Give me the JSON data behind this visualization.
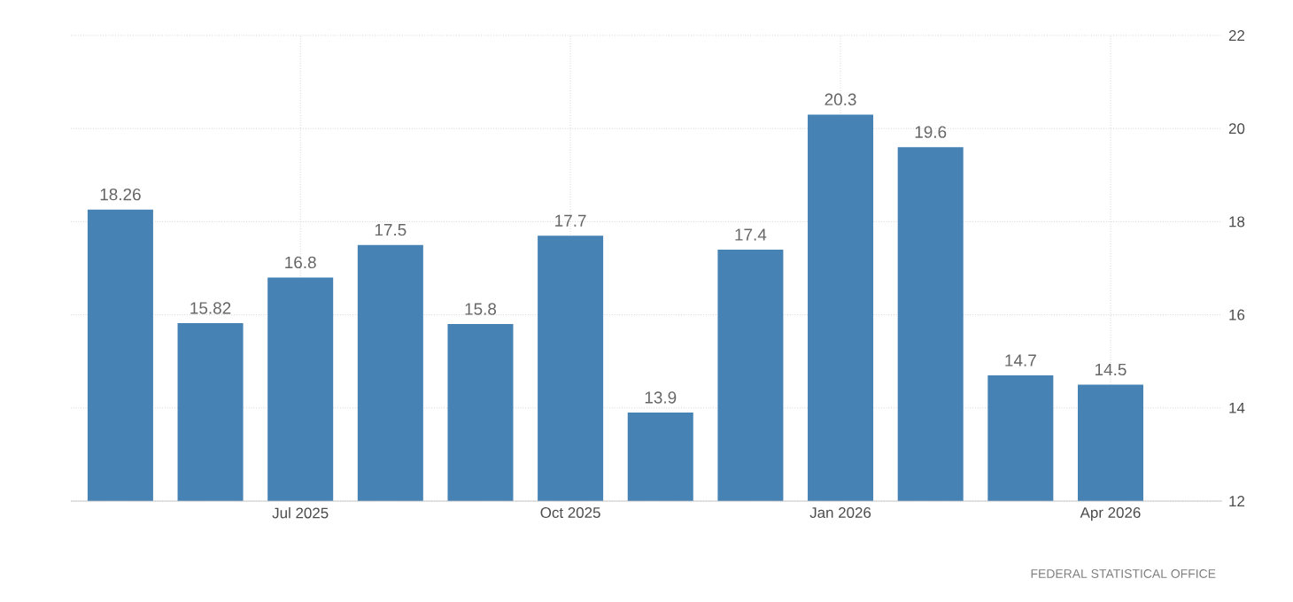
{
  "chart_data": {
    "type": "bar",
    "categories": [
      null,
      null,
      "Jul 2025",
      null,
      null,
      "Oct 2025",
      null,
      null,
      "Jan 2026",
      null,
      null,
      "Apr 2026"
    ],
    "values": [
      18.26,
      15.82,
      16.8,
      17.5,
      15.8,
      17.7,
      13.9,
      17.4,
      20.3,
      19.6,
      14.7,
      14.5
    ],
    "color": "#4682b4",
    "ylim": [
      12,
      22
    ],
    "yticks": [
      12,
      14,
      16,
      18,
      20,
      22
    ],
    "grid": true,
    "data_labels": true,
    "annotations": [
      "FEDERAL STATISTICAL OFFICE"
    ]
  }
}
